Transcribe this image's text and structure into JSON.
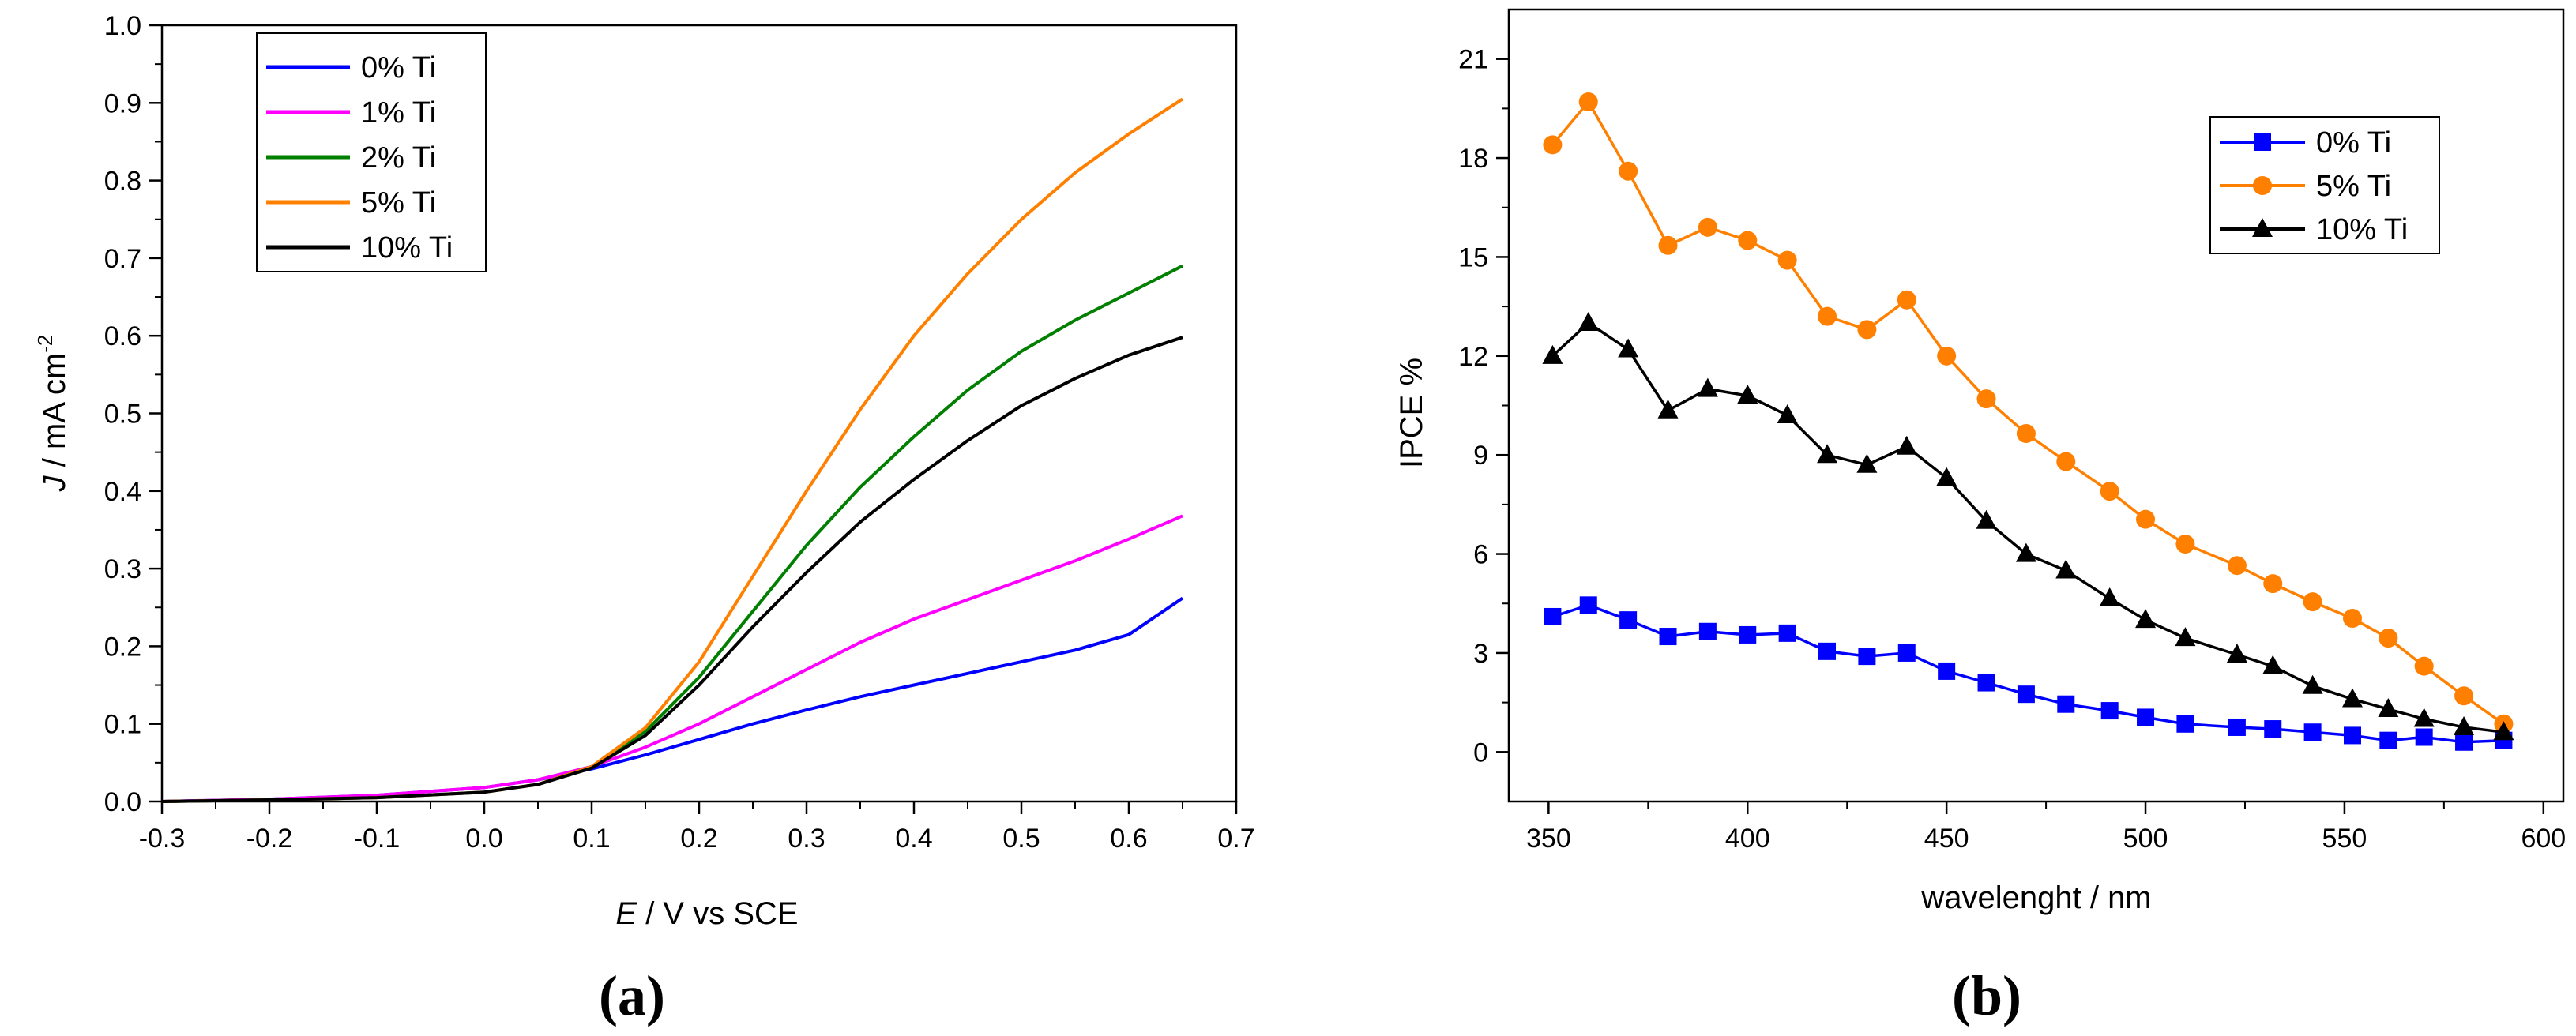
{
  "chart_data": [
    {
      "panel_label": "(a)",
      "type": "line",
      "xlabel": {
        "italic": "E",
        "rest": " / V vs SCE"
      },
      "ylabel": {
        "italic": "J",
        "rest": " / mA cm",
        "sup": "-2"
      },
      "xlim": [
        -0.3,
        0.7
      ],
      "ylim": [
        0.0,
        1.0
      ],
      "xticks": [
        "-0.3",
        "-0.2",
        "-0.1",
        "0.0",
        "0.1",
        "0.2",
        "0.3",
        "0.4",
        "0.5",
        "0.6",
        "0.7"
      ],
      "yticks": [
        "0.0",
        "0.1",
        "0.2",
        "0.3",
        "0.4",
        "0.5",
        "0.6",
        "0.7",
        "0.8",
        "0.9",
        "1.0"
      ],
      "legend_position": "top-left",
      "series": [
        {
          "name": "0% Ti",
          "color": "#0000ff",
          "x": [
            -0.3,
            -0.2,
            -0.1,
            0.0,
            0.05,
            0.1,
            0.15,
            0.2,
            0.25,
            0.3,
            0.35,
            0.4,
            0.45,
            0.5,
            0.55,
            0.6,
            0.65
          ],
          "y": [
            0.0,
            0.003,
            0.008,
            0.018,
            0.028,
            0.042,
            0.06,
            0.08,
            0.1,
            0.118,
            0.135,
            0.15,
            0.165,
            0.18,
            0.195,
            0.215,
            0.262
          ]
        },
        {
          "name": "1% Ti",
          "color": "#ff00ff",
          "x": [
            -0.3,
            -0.2,
            -0.1,
            0.0,
            0.05,
            0.1,
            0.15,
            0.2,
            0.25,
            0.3,
            0.35,
            0.4,
            0.45,
            0.5,
            0.55,
            0.6,
            0.65
          ],
          "y": [
            0.0,
            0.003,
            0.008,
            0.018,
            0.028,
            0.045,
            0.07,
            0.1,
            0.135,
            0.17,
            0.205,
            0.235,
            0.26,
            0.285,
            0.31,
            0.338,
            0.368
          ]
        },
        {
          "name": "2% Ti",
          "color": "#007f00",
          "x": [
            -0.3,
            -0.2,
            -0.1,
            0.0,
            0.05,
            0.1,
            0.15,
            0.2,
            0.25,
            0.3,
            0.35,
            0.4,
            0.45,
            0.5,
            0.55,
            0.6,
            0.65
          ],
          "y": [
            0.0,
            0.002,
            0.005,
            0.012,
            0.022,
            0.045,
            0.09,
            0.16,
            0.245,
            0.33,
            0.405,
            0.47,
            0.53,
            0.58,
            0.62,
            0.655,
            0.69
          ]
        },
        {
          "name": "5% Ti",
          "color": "#ff8000",
          "x": [
            -0.3,
            -0.2,
            -0.1,
            0.0,
            0.05,
            0.1,
            0.15,
            0.2,
            0.25,
            0.3,
            0.35,
            0.4,
            0.45,
            0.5,
            0.55,
            0.6,
            0.65
          ],
          "y": [
            0.0,
            0.002,
            0.005,
            0.012,
            0.022,
            0.045,
            0.095,
            0.18,
            0.29,
            0.4,
            0.505,
            0.6,
            0.68,
            0.75,
            0.81,
            0.86,
            0.905
          ]
        },
        {
          "name": "10% Ti",
          "color": "#000000",
          "x": [
            -0.3,
            -0.2,
            -0.1,
            0.0,
            0.05,
            0.1,
            0.15,
            0.2,
            0.25,
            0.3,
            0.35,
            0.4,
            0.45,
            0.5,
            0.55,
            0.6,
            0.65
          ],
          "y": [
            0.0,
            0.002,
            0.005,
            0.012,
            0.022,
            0.043,
            0.085,
            0.15,
            0.225,
            0.295,
            0.36,
            0.415,
            0.465,
            0.51,
            0.545,
            0.575,
            0.598
          ]
        }
      ]
    },
    {
      "panel_label": "(b)",
      "type": "line",
      "xlabel": "wavelenght / nm",
      "ylabel": "IPCE %",
      "xlim": [
        340,
        605
      ],
      "ylim": [
        -1.5,
        22.5
      ],
      "xticks": [
        "350",
        "400",
        "450",
        "500",
        "550",
        "600"
      ],
      "yticks": [
        "0",
        "3",
        "6",
        "9",
        "12",
        "15",
        "18",
        "21"
      ],
      "legend_position": "top-right",
      "x": [
        351,
        360,
        370,
        380,
        390,
        400,
        410,
        420,
        430,
        440,
        450,
        460,
        470,
        480,
        491,
        500,
        510,
        523,
        532,
        542,
        552,
        561,
        570,
        580,
        590
      ],
      "series": [
        {
          "name": "0% Ti",
          "color": "#0000ff",
          "marker": "square",
          "y": [
            4.1,
            4.45,
            4.0,
            3.5,
            3.65,
            3.55,
            3.6,
            3.05,
            2.9,
            3.0,
            2.45,
            2.1,
            1.75,
            1.45,
            1.25,
            1.05,
            0.85,
            0.75,
            0.7,
            0.6,
            0.5,
            0.35,
            0.45,
            0.3,
            0.35
          ]
        },
        {
          "name": "5% Ti",
          "color": "#ff8000",
          "marker": "circle",
          "y": [
            18.4,
            19.7,
            17.6,
            15.35,
            15.9,
            15.5,
            14.9,
            13.2,
            12.8,
            13.7,
            12.0,
            10.7,
            9.65,
            8.8,
            7.9,
            7.05,
            6.3,
            5.65,
            5.1,
            4.55,
            4.05,
            3.45,
            2.6,
            1.7,
            0.85
          ]
        },
        {
          "name": "10% Ti",
          "color": "#000000",
          "marker": "triangle",
          "y": [
            12.0,
            13.0,
            12.2,
            10.35,
            11.0,
            10.8,
            10.2,
            9.0,
            8.7,
            9.25,
            8.3,
            7.0,
            6.0,
            5.5,
            4.65,
            4.0,
            3.45,
            2.95,
            2.6,
            2.0,
            1.6,
            1.3,
            1.0,
            0.75,
            0.6
          ]
        }
      ]
    }
  ]
}
